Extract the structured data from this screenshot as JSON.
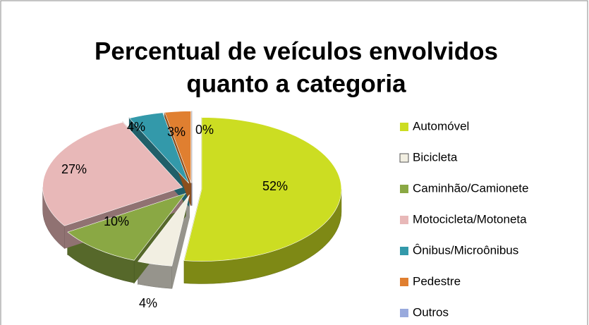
{
  "chart_data": {
    "type": "pie",
    "title": [
      "Percentual de veículos envolvidos",
      "quanto a categoria"
    ],
    "categories": [
      "Automóvel",
      "Bicicleta",
      "Caminhão/Camionete",
      "Motocicleta/Motoneta",
      "Ônibus/Microônibus",
      "Pedestre",
      "Outros"
    ],
    "values": [
      52,
      4,
      10,
      27,
      4,
      3,
      0
    ],
    "value_labels": [
      "52%",
      "4%",
      "10%",
      "27%",
      "4%",
      "3%",
      "0%"
    ],
    "colors": [
      "#ccdd22",
      "#f2efe2",
      "#8aa844",
      "#e8b8b8",
      "#3399aa",
      "#e07f30",
      "#99aadd"
    ],
    "legend": "right"
  }
}
